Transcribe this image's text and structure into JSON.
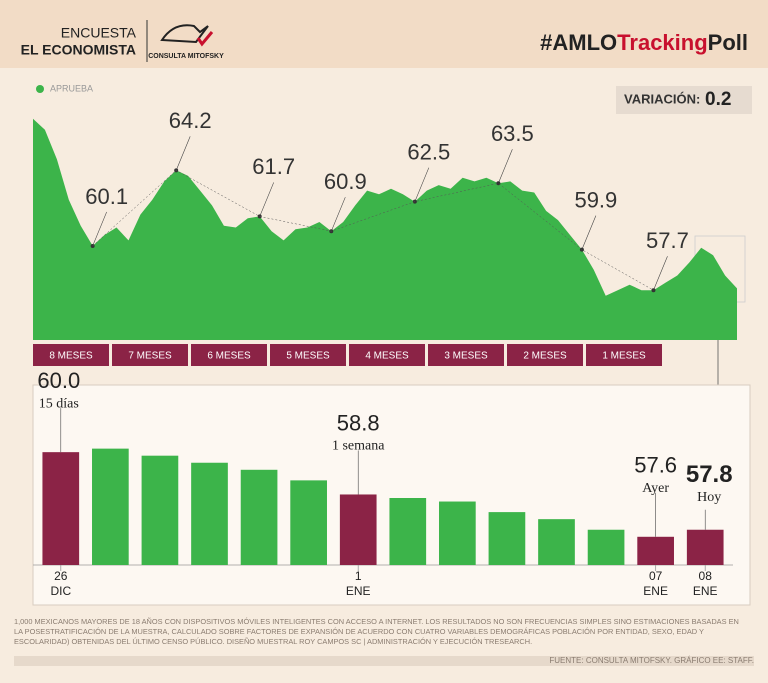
{
  "header": {
    "publisher_line1": "ENCUESTA",
    "publisher_line2": "EL ECONOMISTA",
    "logo": "CONSULTA MITOFSKY",
    "title_parts": [
      "#AMLO",
      "Tracking",
      "Poll"
    ]
  },
  "chart_data": [
    {
      "type": "area",
      "color": "#3cb44a",
      "ylim": [
        55,
        67.2
      ],
      "series": [
        {
          "name": "APRUEBA",
          "color": "#3cb44a",
          "values": [
            67.0,
            66.4,
            64.8,
            62.6,
            61.2,
            60.1,
            60.7,
            61.1,
            60.4,
            61.8,
            62.6,
            63.6,
            64.2,
            63.9,
            63.1,
            62.3,
            61.2,
            61.1,
            61.6,
            61.7,
            60.9,
            60.4,
            61.0,
            61.1,
            61.4,
            60.9,
            61.4,
            62.3,
            63.1,
            62.9,
            63.2,
            62.9,
            62.5,
            63.1,
            63.4,
            63.2,
            63.8,
            63.6,
            63.8,
            63.5,
            63.6,
            63.1,
            63.0,
            62.0,
            61.5,
            60.7,
            59.9,
            58.8,
            57.4,
            57.7,
            58.0,
            57.7,
            57.7,
            58.1,
            58.5,
            59.2,
            60.0,
            59.6,
            58.5,
            57.8
          ]
        }
      ],
      "annotations": [
        null,
        null,
        null,
        null,
        null,
        60.1,
        null,
        null,
        null,
        null,
        null,
        null,
        64.2,
        null,
        null,
        null,
        null,
        null,
        null,
        61.7,
        null,
        null,
        null,
        null,
        null,
        60.9,
        null,
        null,
        null,
        null,
        null,
        null,
        62.5,
        null,
        null,
        null,
        null,
        null,
        null,
        63.5,
        null,
        null,
        null,
        null,
        null,
        null,
        59.9,
        null,
        null,
        null,
        null,
        null,
        57.7,
        null,
        null,
        null,
        null,
        null,
        null,
        null
      ],
      "periods": [
        "8 MESES",
        "7 MESES",
        "6 MESES",
        "5 MESES",
        "4 MESES",
        "3 MESES",
        "2 MESES",
        "1 MESES"
      ],
      "period_color": "#8b2346",
      "variation_label": "VARIACIÓN:",
      "variation": 0.2
    },
    {
      "type": "bar",
      "ylim": [
        56.8,
        60.6
      ],
      "categories": [
        [
          "26",
          "DIC"
        ],
        null,
        null,
        null,
        null,
        null,
        [
          "1",
          "ENE"
        ],
        null,
        null,
        null,
        null,
        null,
        [
          "07",
          "ENE"
        ],
        [
          "08",
          "ENE"
        ]
      ],
      "values": [
        60.0,
        60.1,
        59.9,
        59.7,
        59.5,
        59.2,
        58.8,
        58.7,
        58.6,
        58.3,
        58.1,
        57.8,
        57.6,
        57.8
      ],
      "value_labels": [
        "60.0",
        null,
        null,
        null,
        null,
        null,
        "58.8",
        null,
        null,
        null,
        null,
        null,
        "57.6",
        "57.8"
      ],
      "notes": [
        "15 días",
        null,
        null,
        null,
        null,
        null,
        "1 semana",
        null,
        null,
        null,
        null,
        null,
        "Ayer",
        "Hoy"
      ],
      "colors": [
        "#8b2346",
        "#3cb44a",
        "#3cb44a",
        "#3cb44a",
        "#3cb44a",
        "#3cb44a",
        "#8b2346",
        "#3cb44a",
        "#3cb44a",
        "#3cb44a",
        "#3cb44a",
        "#3cb44a",
        "#8b2346",
        "#8b2346"
      ]
    }
  ],
  "footer": {
    "note": "1,000 MEXICANOS MAYORES DE 18 AÑOS CON DISPOSITIVOS MÓVILES INTELIGENTES CON ACCESO A INTERNET. LOS RESULTADOS NO SON FRECUENCIAS SIMPLES SINO ESTIMACIONES BASADAS EN LA POSESTRATIFICACIÓN DE LA MUESTRA, CALCULADO SOBRE FACTORES DE EXPANSIÓN DE ACUERDO CON CUATRO VARIABLES DEMOGRÁFICAS POBLACIÓN POR ENTIDAD, SEXO, EDAD Y ESCOLARIDAD) OBTENIDAS DEL ÚLTIMO CENSO PÚBLICO. DISEÑO MUESTRAL ROY CAMPOS SC | ADMINISTRACIÓN Y EJECUCIÓN TRESEARCH.",
    "source": "FUENTE: CONSULTA MITOFSKY. GRÁFICO EE: STAFF."
  }
}
